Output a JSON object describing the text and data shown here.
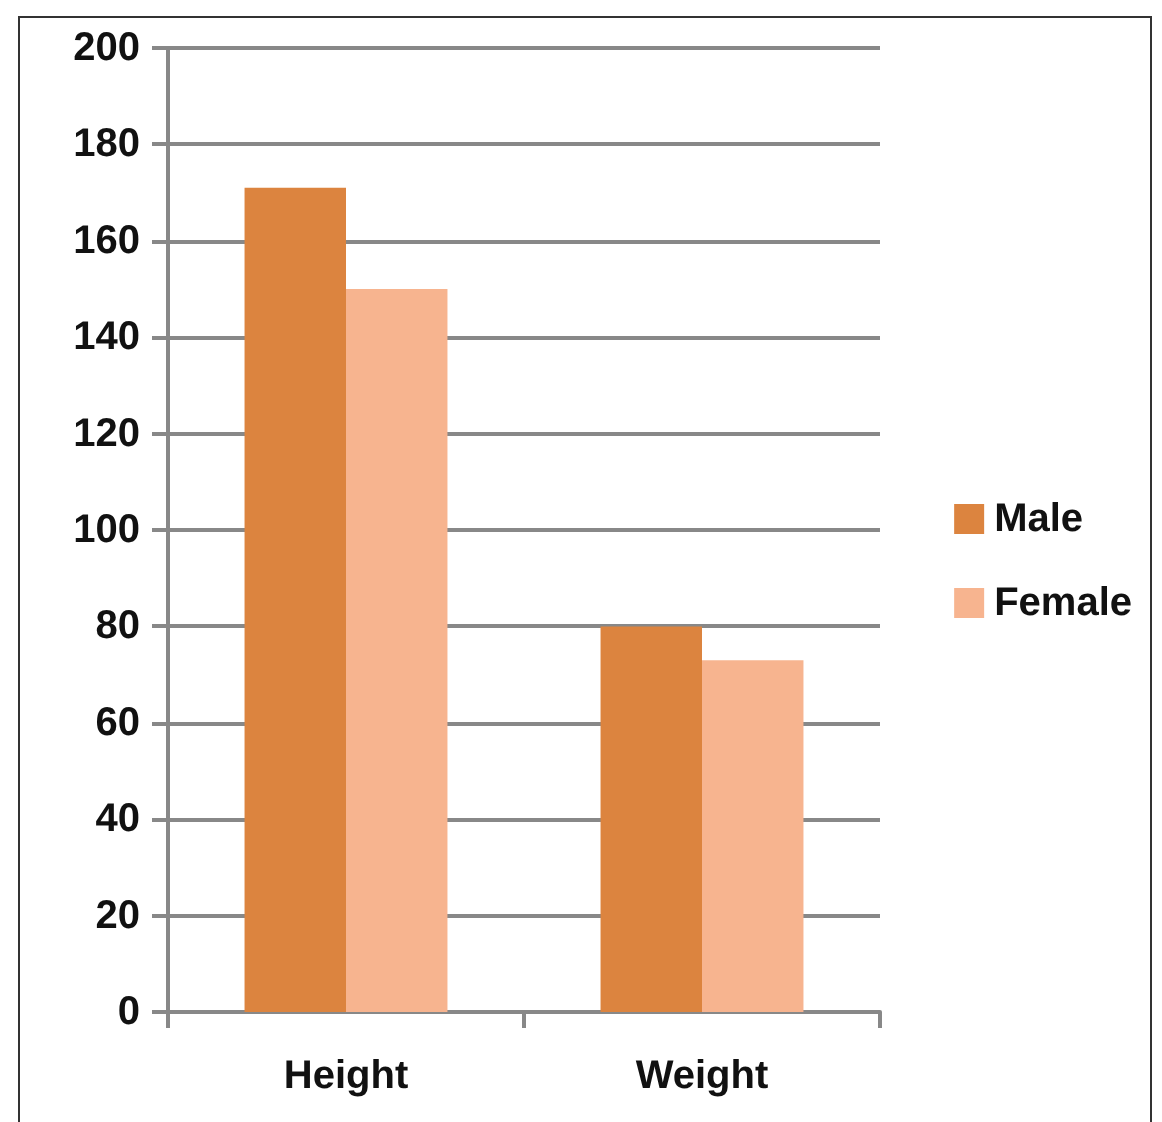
{
  "chart_data": {
    "type": "bar",
    "categories": [
      "Height",
      "Weight"
    ],
    "series": [
      {
        "name": "Male",
        "color": "#dc843f",
        "values": [
          171,
          80
        ]
      },
      {
        "name": "Female",
        "color": "#f7b48f",
        "values": [
          150,
          73
        ]
      }
    ],
    "ylim": [
      0,
      200
    ],
    "yticks": [
      0,
      20,
      40,
      60,
      80,
      100,
      120,
      140,
      160,
      180,
      200
    ],
    "grid": "y",
    "legend": "right"
  }
}
